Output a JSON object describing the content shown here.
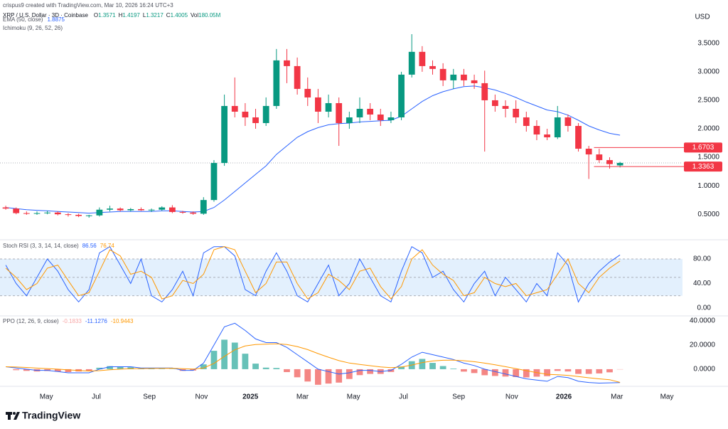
{
  "chart_data": {
    "type": "candlestick",
    "credit": "crispus9 created with TradingView.com, Mar 10, 2026 16:24 UTC+3",
    "title": "XRP / U.S. Dollar · 3D · Coinbase",
    "ohlc_keys": [
      "O",
      "H",
      "L",
      "C"
    ],
    "volume_key": "Vol",
    "volume": "180.05M",
    "currency": "USD",
    "brand": "TradingView",
    "up_color": "#089981",
    "down_color": "#f23645",
    "open": [
      0.62,
      0.6,
      0.52,
      0.51,
      0.52,
      0.53,
      0.5,
      0.49,
      0.47,
      0.48,
      0.58,
      0.6,
      0.57,
      0.59,
      0.57,
      0.58,
      0.62,
      0.54,
      0.53,
      0.51,
      0.75,
      1.4,
      2.4,
      2.3,
      2.2,
      2.1,
      2.4,
      3.2,
      3.1,
      2.7,
      2.55,
      2.3,
      2.45,
      2.1,
      2.2,
      2.35,
      2.25,
      2.15,
      2.2,
      2.95,
      3.35,
      3.1,
      3.05,
      2.85,
      2.95,
      2.85,
      2.8,
      2.5,
      2.4,
      2.35,
      2.2,
      2.05,
      1.9,
      1.85,
      2.2,
      2.05,
      1.65,
      1.55,
      1.45,
      1.3571
    ],
    "high": [
      0.65,
      0.62,
      0.55,
      0.55,
      0.56,
      0.55,
      0.52,
      0.51,
      0.49,
      0.62,
      0.65,
      0.62,
      0.61,
      0.62,
      0.6,
      0.64,
      0.66,
      0.56,
      0.55,
      0.8,
      1.45,
      2.6,
      2.9,
      2.45,
      2.35,
      2.55,
      3.4,
      3.4,
      3.25,
      2.9,
      2.7,
      2.6,
      2.55,
      2.3,
      2.55,
      2.45,
      2.35,
      2.3,
      3.0,
      3.66,
      3.45,
      3.2,
      3.15,
      3.05,
      3.05,
      2.95,
      3.02,
      2.6,
      2.5,
      2.5,
      2.3,
      2.15,
      2.0,
      2.4,
      2.25,
      2.1,
      1.7,
      1.65,
      1.5,
      1.4197
    ],
    "low": [
      0.58,
      0.5,
      0.49,
      0.49,
      0.5,
      0.48,
      0.46,
      0.45,
      0.44,
      0.46,
      0.55,
      0.55,
      0.55,
      0.56,
      0.54,
      0.56,
      0.52,
      0.51,
      0.49,
      0.49,
      0.72,
      1.35,
      2.2,
      2.05,
      2.0,
      2.05,
      2.35,
      2.8,
      2.6,
      2.4,
      2.1,
      2.2,
      1.7,
      2.0,
      2.1,
      2.15,
      2.05,
      2.1,
      2.15,
      2.9,
      3.0,
      2.95,
      2.75,
      2.7,
      2.75,
      2.7,
      1.6,
      2.3,
      2.2,
      2.1,
      1.95,
      1.8,
      1.8,
      1.82,
      1.95,
      1.6,
      1.12,
      1.4,
      1.3,
      1.3217
    ],
    "close": [
      0.6,
      0.52,
      0.51,
      0.52,
      0.53,
      0.5,
      0.49,
      0.47,
      0.48,
      0.58,
      0.6,
      0.57,
      0.59,
      0.57,
      0.58,
      0.62,
      0.54,
      0.53,
      0.51,
      0.75,
      1.4,
      2.4,
      2.3,
      2.2,
      2.1,
      2.4,
      3.2,
      3.1,
      2.7,
      2.55,
      2.3,
      2.45,
      2.1,
      2.2,
      2.35,
      2.25,
      2.15,
      2.2,
      2.95,
      3.35,
      3.1,
      3.05,
      2.85,
      2.95,
      2.85,
      2.8,
      2.5,
      2.4,
      2.35,
      2.2,
      2.05,
      1.9,
      1.85,
      2.2,
      2.05,
      1.65,
      1.55,
      1.45,
      1.38,
      1.4005
    ],
    "ylim": [
      0.14,
      4.01
    ],
    "yticks": [
      {
        "value": 0.5,
        "label": "0.5000"
      },
      {
        "value": 1.0,
        "label": "1.0000"
      },
      {
        "value": 1.5,
        "label": "1.5000"
      },
      {
        "value": 2.0,
        "label": "2.0000"
      },
      {
        "value": 2.5,
        "label": "2.5000"
      },
      {
        "value": 3.0,
        "label": "3.0000"
      },
      {
        "value": 3.5,
        "label": "3.5000"
      }
    ],
    "xlim": [
      -0.55,
      65.0
    ],
    "xticks": [
      {
        "value": 3.9,
        "label": "May"
      },
      {
        "value": 8.7,
        "label": "Jul"
      },
      {
        "value": 13.8,
        "label": "Sep"
      },
      {
        "value": 18.8,
        "label": "Nov"
      },
      {
        "value": 23.5,
        "label": "2025",
        "bold": true
      },
      {
        "value": 28.5,
        "label": "Mar"
      },
      {
        "value": 33.4,
        "label": "May"
      },
      {
        "value": 38.2,
        "label": "Jul"
      },
      {
        "value": 43.5,
        "label": "Sep"
      },
      {
        "value": 48.6,
        "label": "Nov"
      },
      {
        "value": 53.6,
        "label": "2026",
        "bold": true
      },
      {
        "value": 58.7,
        "label": "Mar"
      },
      {
        "value": 63.5,
        "label": "May"
      }
    ],
    "grid": false,
    "levels": [
      {
        "value": 1.6703
      },
      {
        "value": 1.3363
      }
    ],
    "level_color": "#f23645",
    "ema": {
      "label": "EMA (50, close)",
      "color": "#2962ff",
      "values": [
        0.62,
        0.6,
        0.58,
        0.57,
        0.56,
        0.55,
        0.54,
        0.53,
        0.52,
        0.53,
        0.54,
        0.55,
        0.55,
        0.55,
        0.55,
        0.56,
        0.56,
        0.55,
        0.54,
        0.55,
        0.62,
        0.75,
        0.9,
        1.05,
        1.2,
        1.35,
        1.55,
        1.7,
        1.85,
        1.95,
        2.02,
        2.07,
        2.09,
        2.1,
        2.12,
        2.13,
        2.14,
        2.15,
        2.22,
        2.35,
        2.48,
        2.58,
        2.65,
        2.7,
        2.74,
        2.75,
        2.72,
        2.68,
        2.62,
        2.55,
        2.47,
        2.4,
        2.33,
        2.3,
        2.24,
        2.15,
        2.05,
        1.98,
        1.92,
        1.8875
      ]
    },
    "ichimoku_label": "Ichimoku (9, 26, 52, 26)",
    "stoch_rsi": {
      "label": "Stoch RSI (3, 3, 14, 14, close)",
      "ylim": [
        -11.6,
        107.8
      ],
      "yticks": [
        {
          "value": 0,
          "label": "0.00"
        },
        {
          "value": 40,
          "label": "40.00"
        },
        {
          "value": 80,
          "label": "80.00"
        }
      ],
      "band": [
        20,
        80
      ],
      "midline": 50,
      "band_color": "#e3f0fd",
      "series": [
        {
          "color": "#2962ff",
          "values": [
            70,
            40,
            20,
            50,
            80,
            60,
            30,
            10,
            30,
            90,
            100,
            70,
            40,
            80,
            20,
            10,
            30,
            60,
            20,
            90,
            100,
            100,
            85,
            30,
            20,
            60,
            90,
            60,
            20,
            10,
            40,
            70,
            20,
            40,
            80,
            50,
            20,
            10,
            60,
            100,
            90,
            50,
            60,
            30,
            10,
            40,
            60,
            20,
            50,
            30,
            10,
            40,
            20,
            90,
            70,
            10,
            40,
            60,
            75,
            86.56
          ]
        },
        {
          "color": "#ff9800",
          "values": [
            65,
            50,
            30,
            40,
            65,
            70,
            45,
            20,
            25,
            60,
            95,
            85,
            55,
            60,
            50,
            15,
            20,
            45,
            40,
            55,
            95,
            100,
            95,
            60,
            25,
            40,
            75,
            75,
            40,
            15,
            25,
            55,
            45,
            30,
            60,
            65,
            35,
            15,
            35,
            80,
            95,
            70,
            55,
            45,
            20,
            25,
            50,
            40,
            35,
            40,
            20,
            25,
            30,
            55,
            80,
            40,
            25,
            50,
            65,
            76.74
          ]
        }
      ]
    },
    "ppo": {
      "label": "PPO (12, 26, 9, close)",
      "ylim": [
        -12.4,
        43.5
      ],
      "yticks": [
        {
          "value": 0,
          "label": "0.0000"
        },
        {
          "value": 20,
          "label": "20.0000"
        },
        {
          "value": 40,
          "label": "40.0000"
        }
      ],
      "histogram": {
        "up_color": "#26a69a",
        "down_color": "#ef5350",
        "legend_color": "#f7a5a5",
        "values": [
          0,
          -0.8,
          -1.4,
          -1.9,
          -1.5,
          -2,
          -2.4,
          -1.9,
          -1.5,
          1.2,
          2.5,
          2,
          1.6,
          0.5,
          0.4,
          0.3,
          0.2,
          -1.4,
          -1.1,
          4,
          15.2,
          24.4,
          22,
          12.8,
          4.6,
          1.3,
          1,
          -2.4,
          -6.7,
          -10.2,
          -12.9,
          -11.9,
          -11.1,
          -8.1,
          -4.9,
          -3.9,
          -3.9,
          -2.3,
          2.2,
          6.6,
          8.5,
          5.2,
          2.6,
          0.5,
          -2,
          -3.2,
          -5,
          -5.6,
          -6.1,
          -6.5,
          -6.8,
          -6.2,
          -5.8,
          -1.4,
          -1.9,
          -3.9,
          -3.9,
          -3.5,
          -2.6,
          -0.1833
        ]
      },
      "series": [
        {
          "color": "#2962ff",
          "values": [
            2,
            1,
            0,
            -1,
            -1,
            -2,
            -3,
            -3,
            -3,
            0,
            2,
            2,
            2,
            1,
            1,
            1,
            1,
            -1,
            -1,
            5,
            20,
            35,
            38,
            32,
            25,
            22,
            22,
            18,
            12,
            6,
            0,
            -2,
            -4,
            -3,
            -1,
            -1,
            -2,
            -1,
            4,
            10,
            14,
            12,
            10,
            8,
            5,
            3,
            0,
            -2,
            -4,
            -6,
            -8,
            -9,
            -10,
            -6,
            -7,
            -10,
            -11,
            -11.5,
            -11.3,
            -11.1276
          ]
        },
        {
          "color": "#ff9800",
          "values": [
            2,
            1.8,
            1.4,
            0.9,
            0.5,
            0,
            -0.6,
            -1.1,
            -1.5,
            -1.2,
            -0.5,
            0,
            0.4,
            0.5,
            0.6,
            0.7,
            0.8,
            0.4,
            0.1,
            1,
            4.8,
            10.6,
            16,
            19.2,
            20.4,
            20.7,
            21,
            20.4,
            18.7,
            16.2,
            12.9,
            9.9,
            7.1,
            5.1,
            3.9,
            2.9,
            1.9,
            1.3,
            1.8,
            3.4,
            5.5,
            6.8,
            7.4,
            7.5,
            7,
            6.2,
            5,
            3.6,
            2.1,
            0.5,
            -1.2,
            -2.8,
            -4.2,
            -4.6,
            -5.1,
            -6.1,
            -7.1,
            -8,
            -8.7,
            -10.9443
          ]
        }
      ]
    }
  }
}
